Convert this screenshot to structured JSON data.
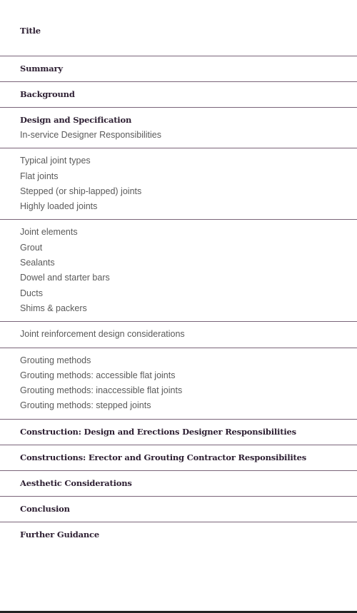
{
  "toc": {
    "title": "Title",
    "summary": "Summary",
    "background": "Background",
    "design": {
      "heading": "Design and Specification",
      "items": [
        "In-service Designer Responsibilities"
      ]
    },
    "joint_types": {
      "items": [
        "Typical joint types",
        "Flat joints",
        "Stepped (or ship-lapped) joints",
        "Highly loaded joints"
      ]
    },
    "joint_elements": {
      "items": [
        "Joint elements",
        "Grout",
        "Sealants",
        "Dowel and starter bars",
        "Ducts",
        "Shims & packers"
      ]
    },
    "reinforcement": {
      "items": [
        "Joint reinforcement design considerations"
      ]
    },
    "grouting": {
      "items": [
        "Grouting methods",
        "Grouting methods: accessible flat joints",
        "Grouting methods: inaccessible flat joints",
        "Grouting methods: stepped joints"
      ]
    },
    "construction_design": "Construction: Design and Erections Designer Responsibilities",
    "construction_erector": "Constructions: Erector and Grouting Contractor Responsibilites",
    "aesthetic": "Aesthetic Considerations",
    "conclusion": "Conclusion",
    "further_guidance": "Further Guidance"
  },
  "colors": {
    "divider": "#7a6479",
    "heading_text": "#2e2033",
    "item_text": "#5a5a5a"
  }
}
